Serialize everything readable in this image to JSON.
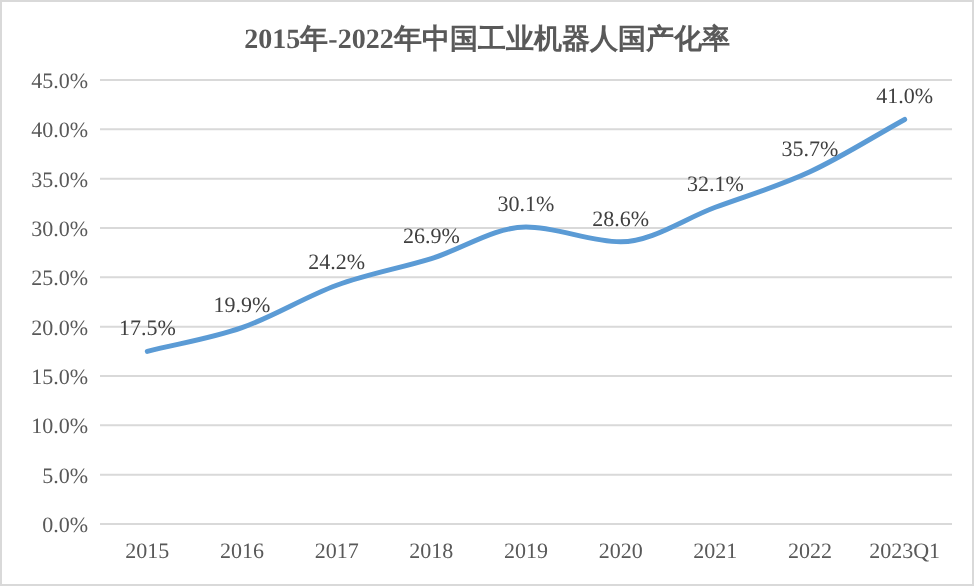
{
  "chart_data": {
    "type": "line",
    "title": "2015年-2022年中国工业机器人国产化率",
    "categories": [
      "2015",
      "2016",
      "2017",
      "2018",
      "2019",
      "2020",
      "2021",
      "2022",
      "2023Q1"
    ],
    "series": [
      {
        "color": "#5b9bd5",
        "values": [
          17.5,
          19.9,
          24.2,
          26.9,
          30.1,
          28.6,
          32.1,
          35.7,
          41.0
        ],
        "value_labels": [
          "17.5%",
          "19.9%",
          "24.2%",
          "26.9%",
          "30.1%",
          "28.6%",
          "32.1%",
          "35.7%",
          "41.0%"
        ]
      }
    ],
    "ylim": [
      0,
      45
    ],
    "yticks": [
      {
        "value": 0,
        "label": "0.0%"
      },
      {
        "value": 5,
        "label": "5.0%"
      },
      {
        "value": 10,
        "label": "10.0%"
      },
      {
        "value": 15,
        "label": "15.0%"
      },
      {
        "value": 20,
        "label": "20.0%"
      },
      {
        "value": 25,
        "label": "25.0%"
      },
      {
        "value": 30,
        "label": "30.0%"
      },
      {
        "value": 35,
        "label": "35.0%"
      },
      {
        "value": 40,
        "label": "40.0%"
      },
      {
        "value": 45,
        "label": "45.0%"
      }
    ],
    "grid": "y",
    "marker": "none",
    "line_style": "solid"
  }
}
